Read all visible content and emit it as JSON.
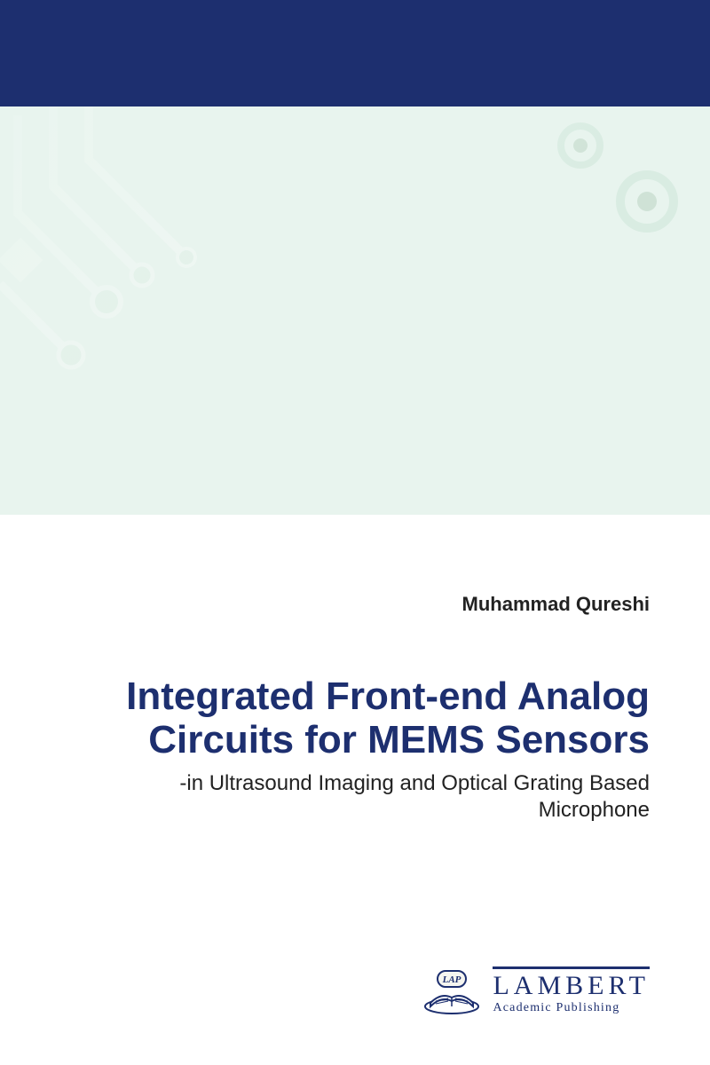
{
  "cover": {
    "author": "Muhammad Qureshi",
    "title": "Integrated Front-end Analog Circuits for MEMS Sensors",
    "subtitle": "-in Ultrasound Imaging and Optical Grating Based Microphone"
  },
  "publisher": {
    "logo_label": "LAP",
    "name": "LAMBERT",
    "tagline": "Academic Publishing"
  },
  "style": {
    "band_color": "#1d2f6f",
    "title_color": "#1d2f6f",
    "author_color": "#222222",
    "subtitle_color": "#222222",
    "publisher_color": "#1d2f6f",
    "art_bg_tint": "#e8f4ee",
    "circuit_line": "#ffffff",
    "circuit_node": "#d9ece2",
    "burst_ray_color": "#a9d8ea",
    "burst_ray_alt": "#cfe9d8",
    "page_bg": "#ffffff",
    "title_fontsize": 44,
    "subtitle_fontsize": 24,
    "author_fontsize": 22,
    "pub_name_fontsize": 30,
    "pub_tag_fontsize": 14,
    "band_height": 120,
    "art_height": 460
  }
}
